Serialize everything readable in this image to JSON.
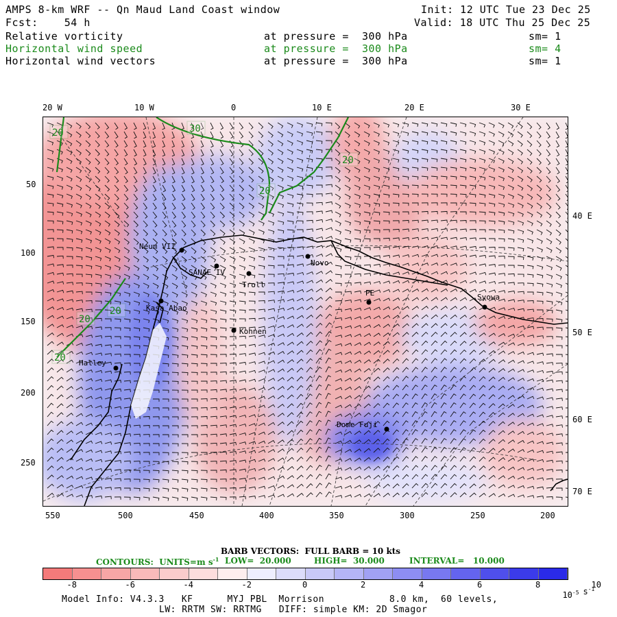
{
  "header": {
    "title": "AMPS 8-km WRF -- Qn Maud Land Coast window",
    "fcst": "Fcst:    54 h",
    "init": "Init: 12 UTC Tue 23 Dec 25",
    "valid": "Valid: 18 UTC Thu 25 Dec 25",
    "fields": [
      {
        "name": "Relative vorticity",
        "pressure": "at pressure =  300 hPa",
        "sm": "sm= 1",
        "color": "#000000"
      },
      {
        "name": "Horizontal wind speed",
        "pressure": "at pressure =  300 hPa",
        "sm": "sm= 4",
        "color": "#1a8a1a"
      },
      {
        "name": "Horizontal wind vectors",
        "pressure": "at pressure =  300 hPa",
        "sm": "sm= 1",
        "color": "#000000"
      }
    ]
  },
  "map": {
    "top_lon_labels": [
      "20 W",
      "10 W",
      "0",
      "10 E",
      "20 E",
      "30 E"
    ],
    "right_lon_labels": [
      "40 E",
      "50 E",
      "60 E",
      "70 E"
    ],
    "left_y_ticks": [
      "50",
      "100",
      "150",
      "200",
      "250"
    ],
    "bottom_x_ticks": [
      "550",
      "500",
      "450",
      "400",
      "350",
      "300",
      "250",
      "200"
    ],
    "stations": [
      {
        "name": "Neum VII"
      },
      {
        "name": "SANAE IV"
      },
      {
        "name": "Troll"
      },
      {
        "name": "Novo"
      },
      {
        "name": "PE"
      },
      {
        "name": "Syowa"
      },
      {
        "name": "Kasa Abao"
      },
      {
        "name": "Kohnen"
      },
      {
        "name": "Halley"
      },
      {
        "name": "Dome Fuji"
      }
    ],
    "contour_labels": [
      "20",
      "30",
      "20",
      "20",
      "20",
      "20",
      "20"
    ],
    "contour_color": "#1a8a1a"
  },
  "legend": {
    "barb_text": "BARB VECTORS:  FULL BARB = 10 kts",
    "contours_text": "CONTOURS:  UNITS=m s",
    "contours_sup": "-1",
    "low_text": "LOW=  20.000",
    "high_text": "HIGH=  30.000",
    "interval_text": "INTERVAL=   10.000",
    "colorbar_labels": [
      "-8",
      "-6",
      "-4",
      "-2",
      "0",
      "2",
      "4",
      "6",
      "8",
      "10"
    ],
    "colorbar_units": "10",
    "colorbar_units_sup": "-5",
    "colorbar_units_tail": "s",
    "colorbar_units_tail_sup": "-1",
    "colorbar_colors": [
      "#f47a7a",
      "#f69090",
      "#f7a6a6",
      "#f9baba",
      "#fbcccc",
      "#fddddd",
      "#feeeee",
      "#eeeefe",
      "#dcdcfb",
      "#c9c9f8",
      "#b5b5f6",
      "#a1a1f4",
      "#8d8df2",
      "#7878f0",
      "#6464ee",
      "#4f4fec",
      "#3b3bea",
      "#2a2ae8"
    ]
  },
  "footer": {
    "line1_left": "Model Info: V4.3.3   KF      MYJ PBL  Morrison",
    "line1_right": "8.0 km,  60 levels,",
    "line2": "LW: RRTM SW: RRTMG   DIFF: simple KM: 2D Smagor"
  }
}
